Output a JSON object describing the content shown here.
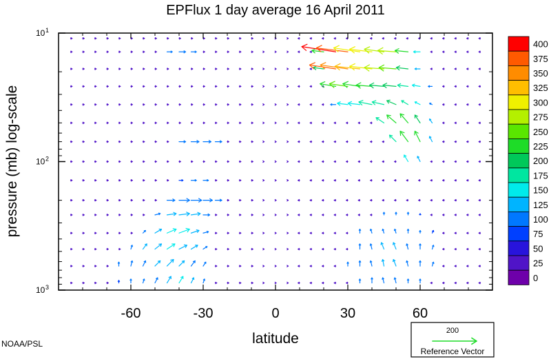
{
  "chart_data": {
    "type": "vector-field",
    "title": "EPFlux  1 day average  16 April     2011",
    "xlabel": "latitude",
    "ylabel": "pressure (mb)  log-scale",
    "x_range": [
      -90,
      90
    ],
    "x_ticks": [
      -60,
      -30,
      0,
      30,
      60
    ],
    "x_tick_labels": [
      "-60",
      "-30",
      "0",
      "30",
      "60"
    ],
    "y_scale": "log",
    "y_range": [
      10,
      1000
    ],
    "y_ticks": [
      {
        "value": 10,
        "base": "10",
        "exp": "1"
      },
      {
        "value": 100,
        "base": "10",
        "exp": "2"
      },
      {
        "value": 1000,
        "base": "10",
        "exp": "3"
      }
    ],
    "colorbar": {
      "labels": [
        "400",
        "375",
        "350",
        "325",
        "300",
        "275",
        "250",
        "225",
        "200",
        "175",
        "150",
        "125",
        "100",
        "75",
        "50",
        "25",
        "0"
      ],
      "colors": [
        "#ff0000",
        "#ff5a00",
        "#ff8c00",
        "#ffbe00",
        "#f0f000",
        "#b4f000",
        "#5ae600",
        "#1edc28",
        "#00c85a",
        "#00e6a0",
        "#00ebeb",
        "#00b4ff",
        "#0078ff",
        "#0040ff",
        "#2814dc",
        "#5014c8",
        "#6e00aa"
      ]
    },
    "reference_vector": {
      "value_label": "200",
      "caption": "Reference Vector",
      "color": "#1edc28"
    },
    "credit": "NOAA/PSL",
    "grid": false,
    "vector_rows": [
      {
        "p": 10,
        "vectors": [
          [
            25,
            -22,
            2,
            340
          ],
          [
            30,
            -18,
            2,
            320
          ],
          [
            35,
            -14,
            1,
            300
          ]
        ]
      },
      {
        "p": 14,
        "vectors": [
          [
            -45,
            4,
            0,
            100
          ],
          [
            -40,
            5,
            0,
            110
          ],
          [
            -35,
            4,
            0,
            100
          ],
          [
            20,
            -9,
            1,
            230
          ],
          [
            25,
            -26,
            4,
            400
          ],
          [
            30,
            -24,
            3,
            380
          ],
          [
            35,
            -20,
            3,
            320
          ],
          [
            40,
            -17,
            2,
            300
          ],
          [
            45,
            -15,
            2,
            290
          ],
          [
            50,
            -14,
            1,
            280
          ],
          [
            55,
            -10,
            1,
            230
          ],
          [
            60,
            -5,
            0,
            160
          ]
        ]
      },
      {
        "p": 19,
        "vectors": [
          [
            20,
            -8,
            1,
            220
          ],
          [
            25,
            -20,
            3,
            380
          ],
          [
            30,
            -21,
            3,
            360
          ],
          [
            35,
            -19,
            2,
            330
          ],
          [
            40,
            -17,
            2,
            310
          ],
          [
            45,
            -15,
            1,
            290
          ],
          [
            50,
            -13,
            1,
            270
          ],
          [
            55,
            -9,
            1,
            220
          ],
          [
            60,
            -4,
            0,
            140
          ]
        ]
      },
      {
        "p": 26,
        "vectors": [
          [
            25,
            -12,
            2,
            240
          ],
          [
            30,
            -14,
            2,
            250
          ],
          [
            35,
            -13,
            2,
            240
          ],
          [
            40,
            -12,
            1,
            230
          ],
          [
            45,
            -11,
            1,
            220
          ],
          [
            50,
            -10,
            1,
            210
          ],
          [
            55,
            -8,
            1,
            190
          ],
          [
            60,
            -6,
            1,
            160
          ],
          [
            65,
            -3,
            0,
            100
          ]
        ]
      },
      {
        "p": 36,
        "vectors": [
          [
            25,
            -4,
            0,
            110
          ],
          [
            30,
            -8,
            1,
            150
          ],
          [
            35,
            -9,
            1,
            160
          ],
          [
            40,
            -10,
            2,
            180
          ],
          [
            45,
            -9,
            2,
            190
          ],
          [
            50,
            -7,
            3,
            200
          ],
          [
            55,
            -5,
            3,
            190
          ],
          [
            60,
            -4,
            2,
            160
          ],
          [
            65,
            -2,
            1,
            110
          ]
        ]
      },
      {
        "p": 50,
        "vectors": [
          [
            45,
            -6,
            4,
            190
          ],
          [
            50,
            -7,
            6,
            230
          ],
          [
            55,
            -6,
            7,
            240
          ],
          [
            60,
            -4,
            6,
            210
          ],
          [
            65,
            -2,
            3,
            130
          ]
        ]
      },
      {
        "p": 70,
        "vectors": [
          [
            -40,
            5,
            0,
            110
          ],
          [
            -35,
            6,
            0,
            120
          ],
          [
            -30,
            6,
            0,
            120
          ],
          [
            -25,
            5,
            0,
            110
          ],
          [
            50,
            -5,
            5,
            190
          ],
          [
            55,
            -6,
            8,
            230
          ],
          [
            60,
            -4,
            8,
            230
          ],
          [
            65,
            -2,
            4,
            140
          ]
        ]
      },
      {
        "p": 100,
        "vectors": [
          [
            55,
            -3,
            5,
            150
          ],
          [
            60,
            -2,
            4,
            130
          ]
        ]
      },
      {
        "p": 140,
        "vectors": [
          [
            -40,
            3,
            0,
            90
          ],
          [
            -35,
            4,
            0,
            100
          ],
          [
            -30,
            4,
            0,
            100
          ]
        ]
      },
      {
        "p": 200,
        "vectors": [
          [
            -45,
            6,
            0,
            110
          ],
          [
            -40,
            8,
            0,
            120
          ],
          [
            -35,
            8,
            0,
            120
          ],
          [
            -30,
            7,
            0,
            110
          ],
          [
            -25,
            5,
            0,
            100
          ]
        ]
      },
      {
        "p": 260,
        "vectors": [
          [
            -50,
            4,
            1,
            110
          ],
          [
            -45,
            7,
            1,
            130
          ],
          [
            -40,
            8,
            1,
            140
          ],
          [
            -35,
            7,
            1,
            130
          ],
          [
            -30,
            5,
            0,
            110
          ],
          [
            45,
            0,
            2,
            100
          ],
          [
            50,
            0,
            2,
            100
          ],
          [
            55,
            0,
            2,
            100
          ],
          [
            60,
            0,
            1,
            90
          ]
        ]
      },
      {
        "p": 360,
        "vectors": [
          [
            -55,
            2,
            2,
            110
          ],
          [
            -50,
            5,
            3,
            140
          ],
          [
            -45,
            7,
            3,
            150
          ],
          [
            -40,
            8,
            3,
            160
          ],
          [
            -35,
            6,
            2,
            140
          ],
          [
            -30,
            4,
            1,
            110
          ],
          [
            35,
            0,
            3,
            110
          ],
          [
            40,
            -1,
            3,
            110
          ],
          [
            45,
            -1,
            3,
            120
          ],
          [
            50,
            -1,
            3,
            120
          ],
          [
            55,
            0,
            3,
            110
          ],
          [
            60,
            0,
            2,
            100
          ],
          [
            65,
            1,
            2,
            90
          ]
        ]
      },
      {
        "p": 480,
        "vectors": [
          [
            -60,
            1,
            3,
            110
          ],
          [
            -55,
            3,
            4,
            130
          ],
          [
            -50,
            5,
            4,
            140
          ],
          [
            -45,
            6,
            4,
            150
          ],
          [
            -40,
            6,
            3,
            140
          ],
          [
            -35,
            5,
            3,
            130
          ],
          [
            -30,
            3,
            2,
            110
          ],
          [
            35,
            0,
            4,
            110
          ],
          [
            40,
            -1,
            4,
            120
          ],
          [
            45,
            -2,
            5,
            130
          ],
          [
            50,
            -2,
            5,
            130
          ],
          [
            55,
            -1,
            4,
            120
          ],
          [
            60,
            0,
            4,
            110
          ],
          [
            65,
            1,
            3,
            100
          ]
        ]
      },
      {
        "p": 650,
        "vectors": [
          [
            -65,
            0,
            3,
            100
          ],
          [
            -60,
            1,
            4,
            110
          ],
          [
            -55,
            2,
            4,
            120
          ],
          [
            -50,
            4,
            4,
            130
          ],
          [
            -45,
            5,
            5,
            140
          ],
          [
            -40,
            4,
            4,
            130
          ],
          [
            -35,
            3,
            4,
            120
          ],
          [
            -30,
            2,
            3,
            110
          ],
          [
            30,
            0,
            3,
            100
          ],
          [
            35,
            0,
            4,
            110
          ],
          [
            40,
            -1,
            4,
            120
          ],
          [
            45,
            -1,
            5,
            130
          ],
          [
            50,
            -2,
            5,
            130
          ],
          [
            55,
            -1,
            4,
            120
          ],
          [
            60,
            0,
            4,
            110
          ],
          [
            65,
            1,
            3,
            100
          ]
        ]
      },
      {
        "p": 880,
        "vectors": [
          [
            -65,
            0,
            2,
            90
          ],
          [
            -60,
            0,
            3,
            100
          ],
          [
            -55,
            1,
            3,
            110
          ],
          [
            -50,
            2,
            4,
            120
          ],
          [
            -45,
            3,
            5,
            140
          ],
          [
            -40,
            3,
            5,
            150
          ],
          [
            -35,
            2,
            4,
            130
          ],
          [
            -30,
            1,
            3,
            110
          ],
          [
            35,
            0,
            3,
            100
          ],
          [
            40,
            0,
            4,
            110
          ],
          [
            45,
            -1,
            4,
            110
          ],
          [
            50,
            -1,
            4,
            110
          ],
          [
            55,
            0,
            3,
            100
          ],
          [
            60,
            0,
            3,
            100
          ]
        ]
      }
    ]
  }
}
